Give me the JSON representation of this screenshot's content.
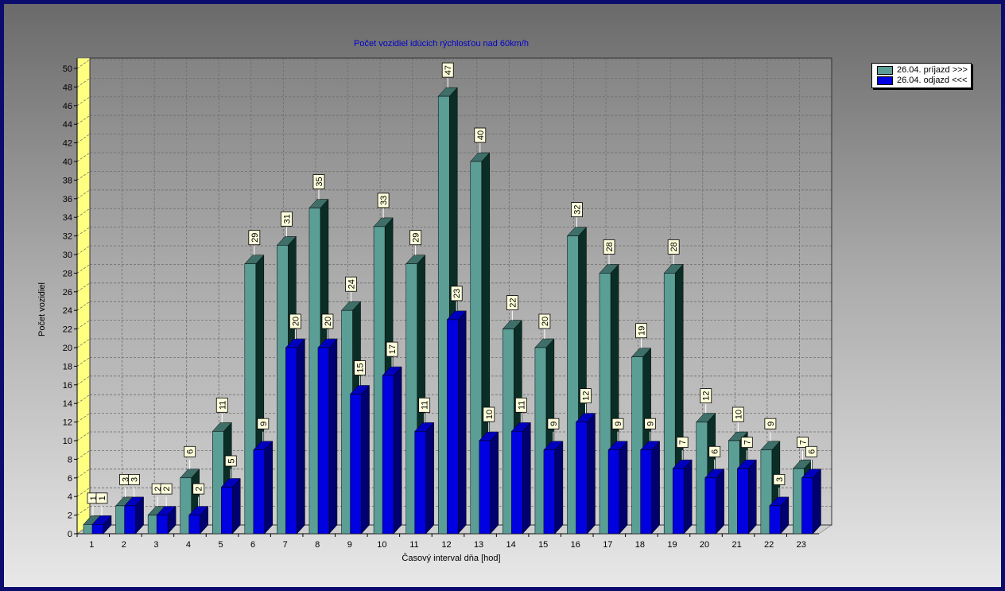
{
  "chart_data": {
    "type": "bar",
    "title": "Počet vozidiel idúcich rýchlosťou nad 60km/h",
    "xlabel": "Časový interval dňa [hod]",
    "ylabel": "Počet vozidiel",
    "categories": [
      "1",
      "2",
      "3",
      "4",
      "5",
      "6",
      "7",
      "8",
      "9",
      "10",
      "11",
      "12",
      "13",
      "14",
      "15",
      "16",
      "17",
      "18",
      "19",
      "20",
      "21",
      "22",
      "23"
    ],
    "ylim": [
      0,
      50
    ],
    "yticks": [
      0,
      2,
      4,
      6,
      8,
      10,
      12,
      14,
      16,
      18,
      20,
      22,
      24,
      26,
      28,
      30,
      32,
      34,
      36,
      38,
      40,
      42,
      44,
      46,
      48,
      50
    ],
    "grid": true,
    "legend_position": "top-right",
    "series": [
      {
        "name": "26.04.  príjazd >>>",
        "color": "#5a9e96",
        "values": [
          1,
          3,
          2,
          6,
          11,
          29,
          31,
          35,
          24,
          33,
          29,
          47,
          40,
          22,
          20,
          32,
          28,
          19,
          28,
          12,
          10,
          9,
          7
        ]
      },
      {
        "name": "26.04.  odjazd <<<",
        "color": "#0000e0",
        "values": [
          1,
          3,
          2,
          2,
          5,
          9,
          20,
          20,
          15,
          17,
          11,
          23,
          10,
          11,
          9,
          12,
          9,
          9,
          7,
          6,
          7,
          3,
          6
        ]
      }
    ]
  }
}
